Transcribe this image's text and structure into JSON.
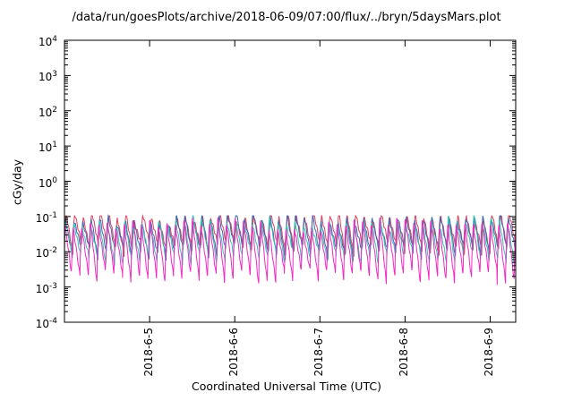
{
  "chart_data": {
    "type": "line",
    "title": "/data/run/goesPlots/archive/2018-06-09/07:00/flux/../bryn/5daysMars.plot",
    "xlabel": "Coordinated Universal Time (UTC)",
    "ylabel": "cGy/day",
    "y_scale": "log10",
    "ylim": [
      0.0001,
      10000
    ],
    "y_tick_exponents": [
      4,
      3,
      2,
      1,
      0,
      -1,
      -2,
      -3,
      -4
    ],
    "x_range_days": [
      4.0,
      9.3
    ],
    "x_ticks": [
      {
        "day": 5,
        "label": "2018-6-5"
      },
      {
        "day": 6,
        "label": "2018-6-6"
      },
      {
        "day": 7,
        "label": "2018-6-7"
      },
      {
        "day": 8,
        "label": "2018-6-8"
      },
      {
        "day": 9,
        "label": "2018-6-9"
      }
    ],
    "grid": false,
    "legend": "none",
    "band_description": "Dense spiky oscillation of overlapping dose-rate traces between about 0.0015 and 0.1 cGy/day, roughly 10 spikes per day over the 5-day window",
    "period_days": 0.1,
    "series": [
      {
        "name": "crimson",
        "color": "#d8415f",
        "log_peak": -1.0,
        "log_trough": -1.95,
        "phase_days": 0.0
      },
      {
        "name": "steel-blue",
        "color": "#3f67b0",
        "log_peak": -1.06,
        "log_trough": -2.02,
        "phase_days": 0.006
      },
      {
        "name": "turquoise",
        "color": "#35c2b0",
        "log_peak": -1.16,
        "log_trough": -2.2,
        "phase_days": 0.012
      },
      {
        "name": "magenta",
        "color": "#f228c6",
        "log_peak": -1.22,
        "log_trough": -2.72,
        "phase_days": 0.018
      }
    ]
  }
}
